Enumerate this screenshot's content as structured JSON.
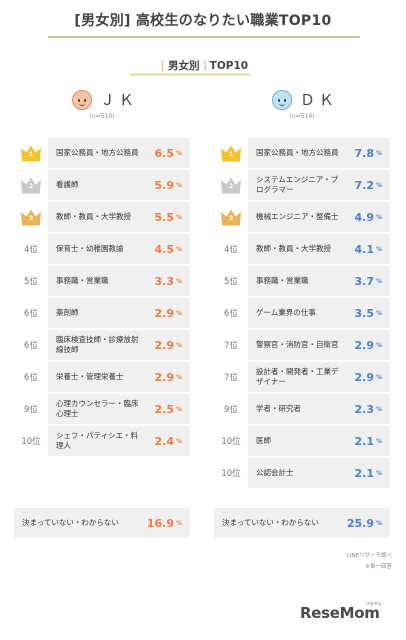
{
  "title": "[男女別] 高校生のなりたい職業TOP10",
  "subtitle": {
    "left_bracket": "[",
    "label": "男女別",
    "right_bracket": "]",
    "suffix": "TOP10"
  },
  "colors": {
    "jk": "#ef7a45",
    "dk": "#4a7ed3",
    "gold": "#f2c230",
    "silver": "#c9c9c9",
    "bronze": "#e7b45a"
  },
  "chart_data": [
    {
      "type": "table",
      "group": "ＪＫ",
      "n": "(n=510)",
      "unit": "%",
      "rows": [
        {
          "rank": "1",
          "job": "国家公務員・地方公務員",
          "value": 6.5
        },
        {
          "rank": "2",
          "job": "看護師",
          "value": 5.9
        },
        {
          "rank": "3",
          "job": "教師・教員・大学教授",
          "value": 5.5
        },
        {
          "rank": "4位",
          "job": "保育士・幼稚園教諭",
          "value": 4.5
        },
        {
          "rank": "5位",
          "job": "事務職・営業職",
          "value": 3.3
        },
        {
          "rank": "6位",
          "job": "薬剤師",
          "value": 2.9
        },
        {
          "rank": "6位",
          "job": "臨床検査技師・診療放射線技師",
          "value": 2.9
        },
        {
          "rank": "6位",
          "job": "栄養士・管理栄養士",
          "value": 2.9
        },
        {
          "rank": "9位",
          "job": "心理カウンセラー・臨床心理士",
          "value": 2.5
        },
        {
          "rank": "10位",
          "job": "シェフ・パティシエ・料理人",
          "value": 2.4
        }
      ],
      "undecided": {
        "job": "決まっていない・わからない",
        "value": 16.9
      }
    },
    {
      "type": "table",
      "group": "ＤＫ",
      "n": "(n=514)",
      "unit": "%",
      "rows": [
        {
          "rank": "1",
          "job": "国家公務員・地方公務員",
          "value": 7.8
        },
        {
          "rank": "2",
          "job": "システムエンジニア・プログラマー",
          "value": 7.2
        },
        {
          "rank": "3",
          "job": "機械エンジニア・整備士",
          "value": 4.9
        },
        {
          "rank": "4位",
          "job": "教師・教員・大学教授",
          "value": 4.1
        },
        {
          "rank": "5位",
          "job": "事務職・営業職",
          "value": 3.7
        },
        {
          "rank": "6位",
          "job": "ゲーム業界の仕事",
          "value": 3.5
        },
        {
          "rank": "7位",
          "job": "警察官・消防官・自衛官",
          "value": 2.9
        },
        {
          "rank": "7位",
          "job": "設計者・開発者・工業デザイナー",
          "value": 2.9
        },
        {
          "rank": "9位",
          "job": "学者・研究者",
          "value": 2.3
        },
        {
          "rank": "10位",
          "job": "医師",
          "value": 2.1
        },
        {
          "rank": "10位",
          "job": "公認会計士",
          "value": 2.1
        }
      ],
      "undecided": {
        "job": "決まっていない・わからない",
        "value": 25.9
      }
    }
  ],
  "footnotes": [
    "LINEリサーチ調べ",
    "※単一回答"
  ],
  "logo": {
    "text": "ReseMom",
    "sup": "リセマム"
  }
}
